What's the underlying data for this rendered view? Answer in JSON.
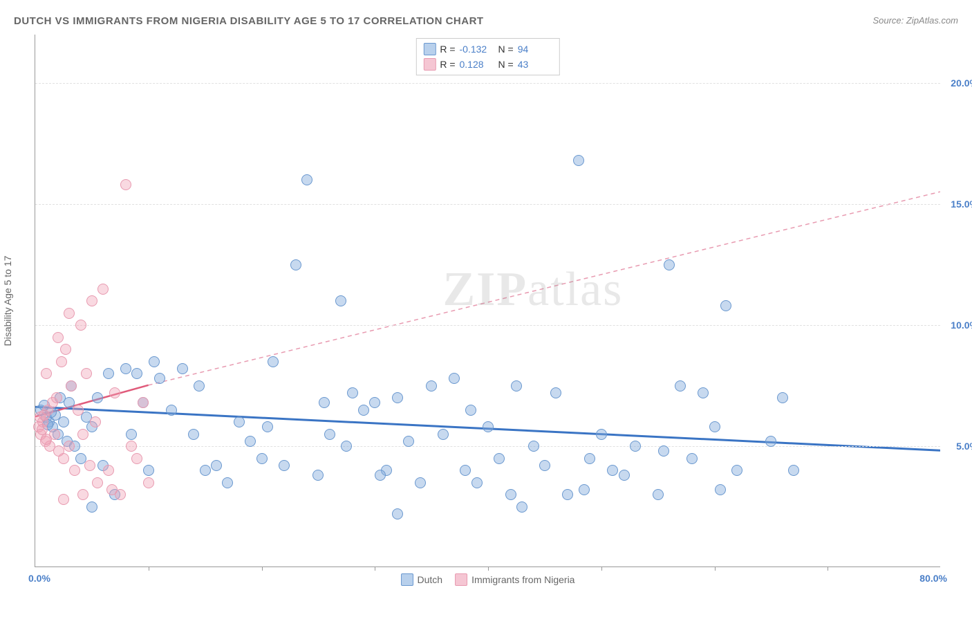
{
  "title": "DUTCH VS IMMIGRANTS FROM NIGERIA DISABILITY AGE 5 TO 17 CORRELATION CHART",
  "source": "Source: ZipAtlas.com",
  "watermark": {
    "bold": "ZIP",
    "light": "atlas"
  },
  "chart": {
    "type": "scatter",
    "y_axis_label": "Disability Age 5 to 17",
    "x_range": [
      0,
      80
    ],
    "y_range": [
      0,
      22
    ],
    "x_start_label": "0.0%",
    "x_end_label": "80.0%",
    "x_ticks": [
      10,
      20,
      30,
      40,
      50,
      60,
      70
    ],
    "y_gridlines": [
      {
        "value": 5.0,
        "label": "5.0%",
        "color": "#4a7fc8"
      },
      {
        "value": 10.0,
        "label": "10.0%",
        "color": "#4a7fc8"
      },
      {
        "value": 15.0,
        "label": "15.0%",
        "color": "#4a7fc8"
      },
      {
        "value": 20.0,
        "label": "20.0%",
        "color": "#4a7fc8"
      }
    ],
    "point_radius": 8,
    "point_border_width": 1.5,
    "series": [
      {
        "id": "dutch",
        "label": "Dutch",
        "fill_color": "rgba(130, 170, 220, 0.45)",
        "border_color": "#6a98cf",
        "swatch_fill": "#b8d0ec",
        "swatch_border": "#6a98cf",
        "r_value": "-0.132",
        "n_value": "94",
        "trend": {
          "x1": 0,
          "y1": 6.6,
          "x2": 80,
          "y2": 4.8,
          "solid": true,
          "dash": false
        },
        "points": [
          [
            0.5,
            6.5
          ],
          [
            1.0,
            6.2
          ],
          [
            1.2,
            6.0
          ],
          [
            1.5,
            5.8
          ],
          [
            1.8,
            6.3
          ],
          [
            2.0,
            5.5
          ],
          [
            2.2,
            7.0
          ],
          [
            2.5,
            6.0
          ],
          [
            2.8,
            5.2
          ],
          [
            3.0,
            6.8
          ],
          [
            3.2,
            7.5
          ],
          [
            3.5,
            5.0
          ],
          [
            0.8,
            6.7
          ],
          [
            1.1,
            5.9
          ],
          [
            1.4,
            6.4
          ],
          [
            4.0,
            4.5
          ],
          [
            4.5,
            6.2
          ],
          [
            5.0,
            5.8
          ],
          [
            5.5,
            7.0
          ],
          [
            6.0,
            4.2
          ],
          [
            6.5,
            8.0
          ],
          [
            7.0,
            3.0
          ],
          [
            8.0,
            8.2
          ],
          [
            8.5,
            5.5
          ],
          [
            9.0,
            8.0
          ],
          [
            9.5,
            6.8
          ],
          [
            10.0,
            4.0
          ],
          [
            10.5,
            8.5
          ],
          [
            11.0,
            7.8
          ],
          [
            12.0,
            6.5
          ],
          [
            13.0,
            8.2
          ],
          [
            14.0,
            5.5
          ],
          [
            15.0,
            4.0
          ],
          [
            16.0,
            4.2
          ],
          [
            17.0,
            3.5
          ],
          [
            18.0,
            6.0
          ],
          [
            19.0,
            5.2
          ],
          [
            20.0,
            4.5
          ],
          [
            21.0,
            8.5
          ],
          [
            22.0,
            4.2
          ],
          [
            23.0,
            12.5
          ],
          [
            24.0,
            16.0
          ],
          [
            25.0,
            3.8
          ],
          [
            26.0,
            5.5
          ],
          [
            27.0,
            11.0
          ],
          [
            28.0,
            7.2
          ],
          [
            29.0,
            6.5
          ],
          [
            30.0,
            6.8
          ],
          [
            31.0,
            4.0
          ],
          [
            32.0,
            7.0
          ],
          [
            33.0,
            5.2
          ],
          [
            34.0,
            3.5
          ],
          [
            35.0,
            7.5
          ],
          [
            36.0,
            5.5
          ],
          [
            37.0,
            7.8
          ],
          [
            38.0,
            4.0
          ],
          [
            39.0,
            3.5
          ],
          [
            40.0,
            5.8
          ],
          [
            41.0,
            4.5
          ],
          [
            42.0,
            3.0
          ],
          [
            43.0,
            2.5
          ],
          [
            44.0,
            5.0
          ],
          [
            45.0,
            4.2
          ],
          [
            46.0,
            7.2
          ],
          [
            47.0,
            3.0
          ],
          [
            48.0,
            16.8
          ],
          [
            49.0,
            4.5
          ],
          [
            50.0,
            5.5
          ],
          [
            51.0,
            4.0
          ],
          [
            52.0,
            3.8
          ],
          [
            53.0,
            5.0
          ],
          [
            55.0,
            3.0
          ],
          [
            56.0,
            12.5
          ],
          [
            57.0,
            7.5
          ],
          [
            58.0,
            4.5
          ],
          [
            59.0,
            7.2
          ],
          [
            60.0,
            5.8
          ],
          [
            61.0,
            10.8
          ],
          [
            62.0,
            4.0
          ],
          [
            65.0,
            5.2
          ],
          [
            66.0,
            7.0
          ],
          [
            67.0,
            4.0
          ],
          [
            5.0,
            2.5
          ],
          [
            14.5,
            7.5
          ],
          [
            32.0,
            2.2
          ],
          [
            48.5,
            3.2
          ],
          [
            55.5,
            4.8
          ],
          [
            60.5,
            3.2
          ],
          [
            42.5,
            7.5
          ],
          [
            25.5,
            6.8
          ],
          [
            20.5,
            5.8
          ],
          [
            27.5,
            5.0
          ],
          [
            38.5,
            6.5
          ],
          [
            30.5,
            3.8
          ]
        ]
      },
      {
        "id": "nigeria",
        "label": "Immigrants from Nigeria",
        "fill_color": "rgba(240, 160, 180, 0.40)",
        "border_color": "#e89ab0",
        "swatch_fill": "#f5c6d3",
        "swatch_border": "#e89ab0",
        "r_value": "0.128",
        "n_value": "43",
        "trend_solid": {
          "x1": 0,
          "y1": 6.2,
          "x2": 10,
          "y2": 7.5,
          "solid": true
        },
        "trend_dash": {
          "x1": 10,
          "y1": 7.5,
          "x2": 80,
          "y2": 15.5,
          "dash": true
        },
        "points": [
          [
            0.3,
            5.8
          ],
          [
            0.5,
            5.5
          ],
          [
            0.7,
            6.0
          ],
          [
            0.9,
            5.2
          ],
          [
            1.1,
            6.5
          ],
          [
            1.3,
            5.0
          ],
          [
            1.5,
            6.8
          ],
          [
            1.7,
            5.5
          ],
          [
            1.9,
            7.0
          ],
          [
            2.1,
            4.8
          ],
          [
            0.4,
            6.2
          ],
          [
            0.6,
            5.7
          ],
          [
            0.8,
            6.3
          ],
          [
            1.0,
            5.3
          ],
          [
            2.3,
            8.5
          ],
          [
            2.5,
            4.5
          ],
          [
            2.7,
            9.0
          ],
          [
            3.0,
            5.0
          ],
          [
            3.2,
            7.5
          ],
          [
            3.5,
            4.0
          ],
          [
            3.8,
            6.5
          ],
          [
            4.0,
            10.0
          ],
          [
            4.2,
            5.5
          ],
          [
            4.5,
            8.0
          ],
          [
            4.8,
            4.2
          ],
          [
            5.0,
            11.0
          ],
          [
            5.3,
            6.0
          ],
          [
            5.5,
            3.5
          ],
          [
            6.0,
            11.5
          ],
          [
            6.5,
            4.0
          ],
          [
            7.0,
            7.2
          ],
          [
            7.5,
            3.0
          ],
          [
            8.0,
            15.8
          ],
          [
            8.5,
            5.0
          ],
          [
            9.0,
            4.5
          ],
          [
            9.5,
            6.8
          ],
          [
            10.0,
            3.5
          ],
          [
            2.0,
            9.5
          ],
          [
            3.0,
            10.5
          ],
          [
            2.5,
            2.8
          ],
          [
            4.2,
            3.0
          ],
          [
            6.8,
            3.2
          ],
          [
            1.0,
            8.0
          ]
        ]
      }
    ]
  }
}
